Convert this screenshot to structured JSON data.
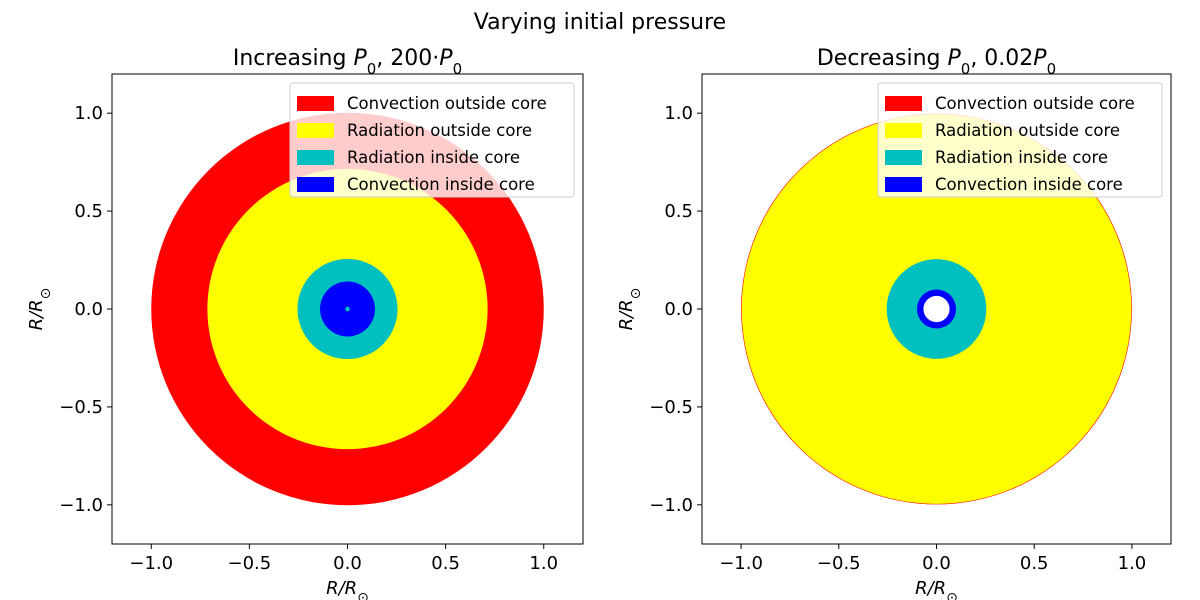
{
  "figure": {
    "suptitle": "Varying initial pressure"
  },
  "chart_data": [
    {
      "type": "area",
      "title": "Increasing P₀, 200·P₀",
      "title_parts": {
        "pre": "Increasing ",
        "p": "P",
        "sub": "0",
        "mid": ", 200·",
        "p2": "P",
        "sub2": "0"
      },
      "xlabel": "R/R⊙",
      "ylabel": "R/R⊙",
      "xlim": [
        -1.2,
        1.2
      ],
      "ylim": [
        -1.2,
        1.2
      ],
      "xticks": [
        -1.0,
        -0.5,
        0.0,
        0.5,
        1.0
      ],
      "yticks": [
        -1.0,
        -0.5,
        0.0,
        0.5,
        1.0
      ],
      "xtick_labels": [
        "−1.0",
        "−0.5",
        "0.0",
        "0.5",
        "1.0"
      ],
      "ytick_labels": [
        "−1.0",
        "−0.5",
        "0.0",
        "0.5",
        "1.0"
      ],
      "grid": false,
      "legend_position": "top-right",
      "legend": [
        {
          "label": "Convection outside core",
          "color": "#ff0000"
        },
        {
          "label": "Radiation outside core",
          "color": "#ffff00"
        },
        {
          "label": "Radiation inside core",
          "color": "#00bfbf"
        },
        {
          "label": "Convection inside core",
          "color": "#0000ff"
        }
      ],
      "shells": [
        {
          "r": 1.0,
          "color": "#ff0000"
        },
        {
          "r": 0.714,
          "color": "#ffff00"
        },
        {
          "r": 0.255,
          "color": "#00bfbf"
        },
        {
          "r": 0.14,
          "color": "#0000ff"
        },
        {
          "r": 0.012,
          "color": "#00bfbf"
        }
      ]
    },
    {
      "type": "area",
      "title": "Decreasing P₀, 0.02P₀",
      "title_parts": {
        "pre": "Decreasing ",
        "p": "P",
        "sub": "0",
        "mid": ", 0.02",
        "p2": "P",
        "sub2": "0"
      },
      "xlabel": "R/R⊙",
      "ylabel": "R/R⊙",
      "xlim": [
        -1.2,
        1.2
      ],
      "ylim": [
        -1.2,
        1.2
      ],
      "xticks": [
        -1.0,
        -0.5,
        0.0,
        0.5,
        1.0
      ],
      "yticks": [
        -1.0,
        -0.5,
        0.0,
        0.5,
        1.0
      ],
      "xtick_labels": [
        "−1.0",
        "−0.5",
        "0.0",
        "0.5",
        "1.0"
      ],
      "ytick_labels": [
        "−1.0",
        "−0.5",
        "0.0",
        "0.5",
        "1.0"
      ],
      "grid": false,
      "legend_position": "top-right",
      "legend": [
        {
          "label": "Convection outside core",
          "color": "#ff0000"
        },
        {
          "label": "Radiation outside core",
          "color": "#ffff00"
        },
        {
          "label": "Radiation inside core",
          "color": "#00bfbf"
        },
        {
          "label": "Convection inside core",
          "color": "#0000ff"
        }
      ],
      "shells": [
        {
          "r": 1.0,
          "color": "#ff0000"
        },
        {
          "r": 0.997,
          "color": "#ffff00"
        },
        {
          "r": 0.255,
          "color": "#00bfbf"
        },
        {
          "r": 0.1,
          "color": "#0000ff"
        },
        {
          "r": 0.067,
          "color": "#ffffff"
        }
      ]
    }
  ]
}
